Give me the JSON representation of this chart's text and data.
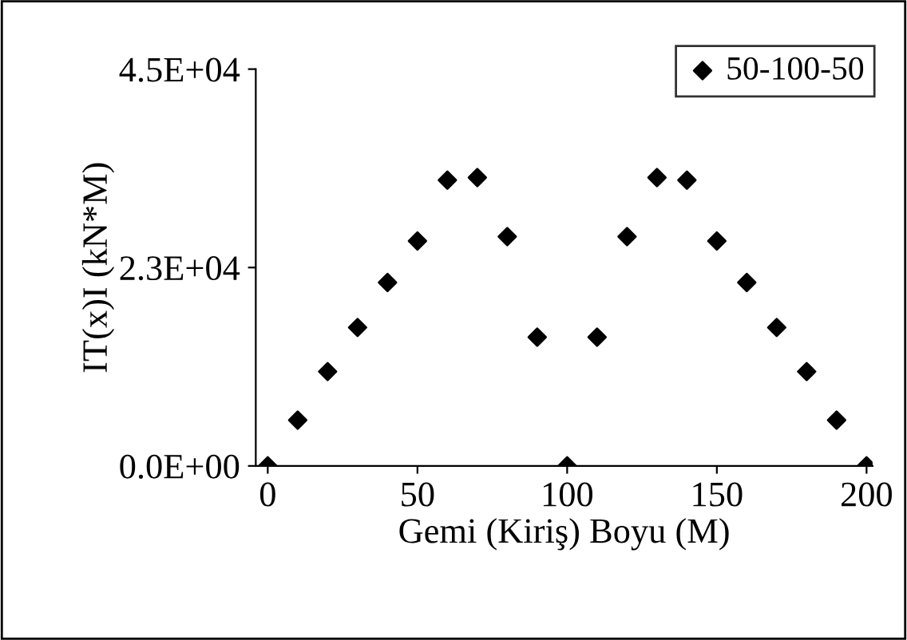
{
  "chart_data": {
    "type": "scatter",
    "xlabel": "Gemi (Kiriş) Boyu (M)",
    "ylabel": "IT(x)I (kN*M)",
    "x": [
      0,
      10,
      20,
      30,
      40,
      50,
      60,
      70,
      80,
      90,
      100,
      110,
      120,
      130,
      140,
      150,
      160,
      170,
      180,
      190,
      200
    ],
    "series": [
      {
        "name": "50-100-50",
        "color": "#000000",
        "values": [
          0,
          5200,
          10700,
          15700,
          20800,
          25500,
          32400,
          32700,
          26000,
          14600,
          0,
          14600,
          26000,
          32700,
          32400,
          25500,
          20800,
          15700,
          10700,
          5200,
          0
        ]
      }
    ],
    "xlim": [
      -4,
      202
    ],
    "xticks": [
      0,
      50,
      100,
      150,
      200
    ],
    "ylim": [
      0,
      45000
    ],
    "yticks": [
      {
        "value": 0,
        "label": "0.0E+00"
      },
      {
        "value": 22500,
        "label": "2.3E+04"
      },
      {
        "value": 45000,
        "label": "4.5E+04"
      }
    ],
    "marker": "diamond",
    "grid": false,
    "legend": "top right"
  }
}
